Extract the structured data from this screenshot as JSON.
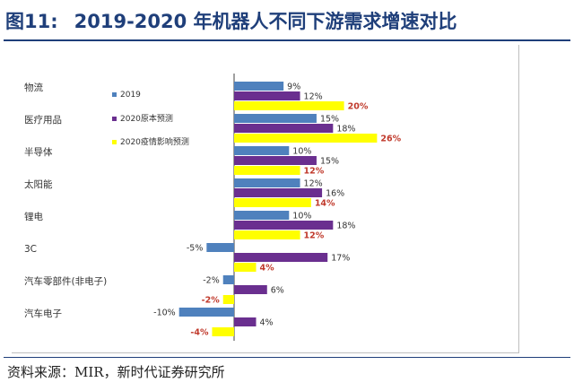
{
  "figure": {
    "number": "图11:",
    "title": "2019-2020 年机器人不同下游需求增速对比"
  },
  "source": "资料来源：MIR，新时代证券研究所",
  "chart_data": {
    "type": "bar",
    "orientation": "horizontal",
    "categories": [
      "物流",
      "医疗用品",
      "半导体",
      "太阳能",
      "锂电",
      "3C",
      "汽车零部件(非电子)",
      "汽车电子"
    ],
    "series": [
      {
        "name": "2019",
        "color": "#4f81bd",
        "values": [
          9,
          15,
          10,
          12,
          10,
          -5,
          -2,
          -10
        ],
        "labels": [
          "9%",
          "15%",
          "10%",
          "12%",
          "10%",
          "-5%",
          "-2%",
          "-10%"
        ]
      },
      {
        "name": "2020原本预测",
        "color": "#6a2f8f",
        "values": [
          12,
          18,
          15,
          16,
          18,
          17,
          6,
          4
        ],
        "labels": [
          "12%",
          "18%",
          "15%",
          "16%",
          "18%",
          "17%",
          "6%",
          "4%"
        ]
      },
      {
        "name": "2020疫情影响预测",
        "color": "#ffff00",
        "values": [
          20,
          26,
          12,
          14,
          12,
          4,
          -2,
          -4
        ],
        "labels": [
          "20%",
          "26%",
          "12%",
          "14%",
          "12%",
          "4%",
          "-2%",
          "-4%"
        ]
      }
    ],
    "legend_position": "upper-left",
    "grid": false
  }
}
